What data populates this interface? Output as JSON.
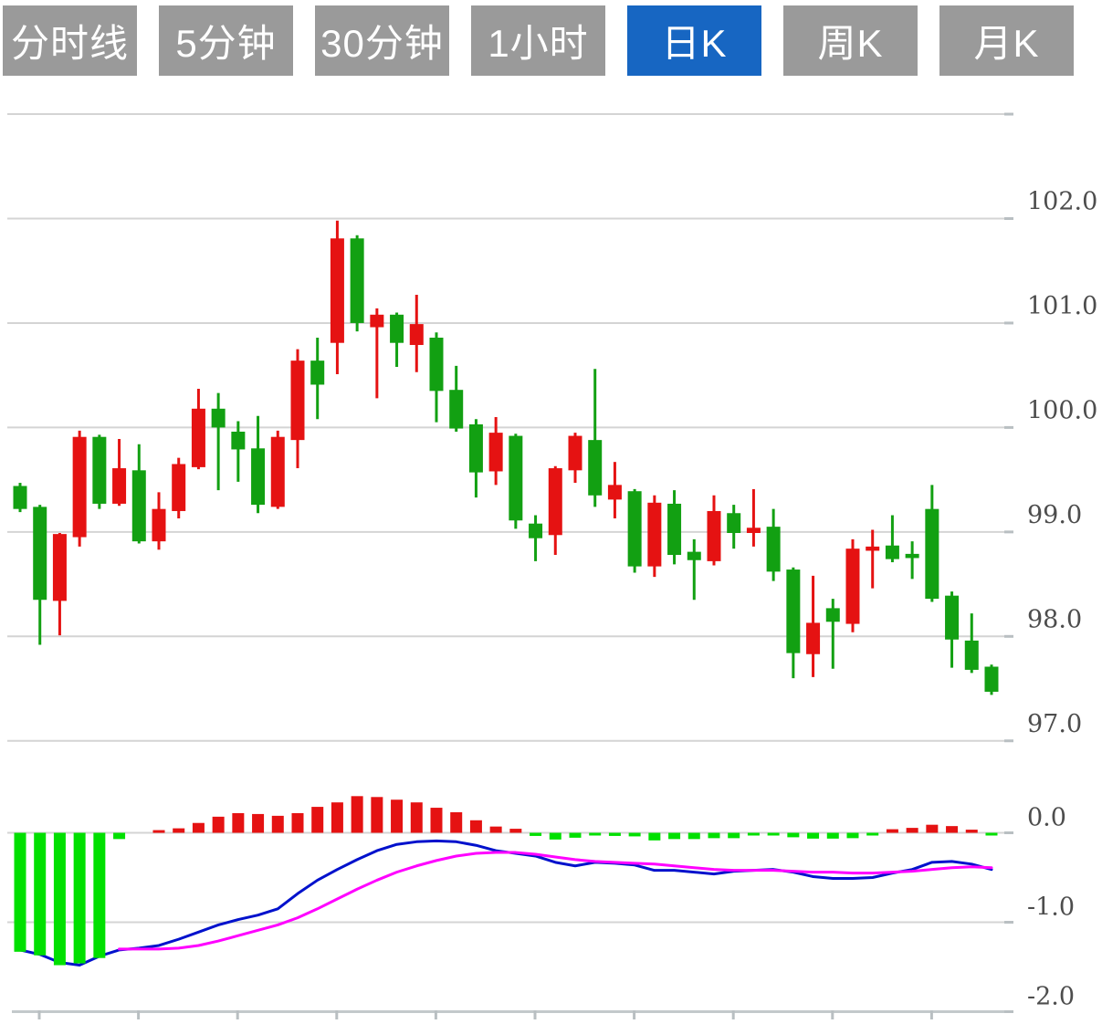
{
  "tabs": [
    {
      "label": "分时线",
      "active": false
    },
    {
      "label": "5分钟",
      "active": false
    },
    {
      "label": "30分钟",
      "active": false
    },
    {
      "label": "1小时",
      "active": false
    },
    {
      "label": "日K",
      "active": true
    },
    {
      "label": "周K",
      "active": false
    },
    {
      "label": "月K",
      "active": false
    }
  ],
  "colors": {
    "candle_up": "#e51212",
    "candle_down": "#12a012",
    "hist_up": "#e51212",
    "hist_down": "#00e000",
    "dif_line": "#0011cc",
    "dea_line": "#ff00ff",
    "grid": "#d4d4d4",
    "axis_line": "#c3c9cb",
    "axis_text": "#4d4d4d",
    "tab_bg": "#9a9a9a",
    "tab_active_bg": "#1766c2",
    "tab_text": "#ffffff"
  },
  "chart_data": {
    "type": "candlestick+macd",
    "title": "",
    "legend": "none",
    "grid": "horizontal gridlines only, labels on right side",
    "price_axis": {
      "tick_values": [
        103,
        102,
        101,
        100,
        99,
        98,
        97
      ],
      "tick_labels": [
        "",
        "102.0",
        "101.0",
        "100.0",
        "99.0",
        "98.0",
        "97.0"
      ],
      "range": [
        97,
        103
      ]
    },
    "macd_axis": {
      "tick_values": [
        0,
        -1,
        -2
      ],
      "tick_labels": [
        "0.0",
        "-1.0",
        "-2.0"
      ],
      "range": [
        -2,
        0.6
      ]
    },
    "candles": [
      {
        "o": 99.44,
        "h": 99.47,
        "l": 99.19,
        "c": 99.22
      },
      {
        "o": 99.24,
        "h": 99.26,
        "l": 97.92,
        "c": 98.35
      },
      {
        "o": 98.34,
        "h": 98.99,
        "l": 98.01,
        "c": 98.98
      },
      {
        "o": 98.95,
        "h": 99.97,
        "l": 98.86,
        "c": 99.91
      },
      {
        "o": 99.91,
        "h": 99.93,
        "l": 99.22,
        "c": 99.27
      },
      {
        "o": 99.27,
        "h": 99.89,
        "l": 99.25,
        "c": 99.61
      },
      {
        "o": 99.59,
        "h": 99.84,
        "l": 98.89,
        "c": 98.91
      },
      {
        "o": 98.91,
        "h": 99.38,
        "l": 98.83,
        "c": 99.22
      },
      {
        "o": 99.2,
        "h": 99.71,
        "l": 99.13,
        "c": 99.65
      },
      {
        "o": 99.62,
        "h": 100.37,
        "l": 99.6,
        "c": 100.18
      },
      {
        "o": 100.18,
        "h": 100.33,
        "l": 99.4,
        "c": 100.0
      },
      {
        "o": 99.96,
        "h": 100.06,
        "l": 99.48,
        "c": 99.79
      },
      {
        "o": 99.8,
        "h": 100.11,
        "l": 99.18,
        "c": 99.26
      },
      {
        "o": 99.24,
        "h": 99.97,
        "l": 99.22,
        "c": 99.91
      },
      {
        "o": 99.88,
        "h": 100.75,
        "l": 99.61,
        "c": 100.64
      },
      {
        "o": 100.64,
        "h": 100.86,
        "l": 100.08,
        "c": 100.41
      },
      {
        "o": 100.81,
        "h": 101.98,
        "l": 100.51,
        "c": 101.81
      },
      {
        "o": 101.81,
        "h": 101.84,
        "l": 100.92,
        "c": 101.0
      },
      {
        "o": 100.96,
        "h": 101.14,
        "l": 100.28,
        "c": 101.08
      },
      {
        "o": 101.08,
        "h": 101.1,
        "l": 100.58,
        "c": 100.81
      },
      {
        "o": 100.79,
        "h": 101.27,
        "l": 100.53,
        "c": 100.99
      },
      {
        "o": 100.86,
        "h": 100.91,
        "l": 100.05,
        "c": 100.35
      },
      {
        "o": 100.36,
        "h": 100.59,
        "l": 99.96,
        "c": 99.99
      },
      {
        "o": 100.03,
        "h": 100.08,
        "l": 99.33,
        "c": 99.57
      },
      {
        "o": 99.58,
        "h": 100.1,
        "l": 99.45,
        "c": 99.95
      },
      {
        "o": 99.92,
        "h": 99.94,
        "l": 99.03,
        "c": 99.11
      },
      {
        "o": 99.08,
        "h": 99.16,
        "l": 98.72,
        "c": 98.94
      },
      {
        "o": 98.97,
        "h": 99.63,
        "l": 98.78,
        "c": 99.61
      },
      {
        "o": 99.59,
        "h": 99.95,
        "l": 99.47,
        "c": 99.92
      },
      {
        "o": 99.88,
        "h": 100.56,
        "l": 99.24,
        "c": 99.35
      },
      {
        "o": 99.31,
        "h": 99.67,
        "l": 99.13,
        "c": 99.45
      },
      {
        "o": 99.39,
        "h": 99.41,
        "l": 98.61,
        "c": 98.67
      },
      {
        "o": 98.67,
        "h": 99.35,
        "l": 98.57,
        "c": 99.28
      },
      {
        "o": 99.27,
        "h": 99.4,
        "l": 98.69,
        "c": 98.78
      },
      {
        "o": 98.81,
        "h": 98.93,
        "l": 98.35,
        "c": 98.73
      },
      {
        "o": 98.72,
        "h": 99.35,
        "l": 98.68,
        "c": 99.2
      },
      {
        "o": 99.18,
        "h": 99.26,
        "l": 98.84,
        "c": 98.99
      },
      {
        "o": 98.99,
        "h": 99.41,
        "l": 98.86,
        "c": 99.04
      },
      {
        "o": 99.05,
        "h": 99.22,
        "l": 98.53,
        "c": 98.62
      },
      {
        "o": 98.64,
        "h": 98.66,
        "l": 97.6,
        "c": 97.84
      },
      {
        "o": 97.83,
        "h": 98.58,
        "l": 97.61,
        "c": 98.13
      },
      {
        "o": 98.27,
        "h": 98.36,
        "l": 97.69,
        "c": 98.14
      },
      {
        "o": 98.12,
        "h": 98.93,
        "l": 98.04,
        "c": 98.84
      },
      {
        "o": 98.82,
        "h": 99.02,
        "l": 98.46,
        "c": 98.86
      },
      {
        "o": 98.87,
        "h": 99.16,
        "l": 98.71,
        "c": 98.74
      },
      {
        "o": 98.79,
        "h": 98.91,
        "l": 98.55,
        "c": 98.75
      },
      {
        "o": 99.22,
        "h": 99.45,
        "l": 98.33,
        "c": 98.36
      },
      {
        "o": 98.39,
        "h": 98.43,
        "l": 97.7,
        "c": 97.97
      },
      {
        "o": 97.96,
        "h": 98.22,
        "l": 97.65,
        "c": 97.68
      },
      {
        "o": 97.71,
        "h": 97.73,
        "l": 97.44,
        "c": 97.47
      }
    ],
    "macd": {
      "histogram": [
        -1.33,
        -1.37,
        -1.48,
        -1.46,
        -1.4,
        -0.07,
        0,
        0.03,
        0.05,
        0.11,
        0.18,
        0.22,
        0.21,
        0.19,
        0.22,
        0.29,
        0.34,
        0.41,
        0.4,
        0.37,
        0.34,
        0.28,
        0.23,
        0.14,
        0.07,
        0.045,
        -0.035,
        -0.075,
        -0.055,
        -0.03,
        -0.035,
        -0.04,
        -0.085,
        -0.07,
        -0.07,
        -0.06,
        -0.06,
        -0.03,
        -0.025,
        -0.05,
        -0.065,
        -0.065,
        -0.06,
        -0.025,
        0.04,
        0.055,
        0.09,
        0.075,
        0.035,
        -0.03
      ],
      "dif": [
        -1.31,
        -1.36,
        -1.45,
        -1.48,
        -1.38,
        -1.31,
        -1.29,
        -1.26,
        -1.19,
        -1.11,
        -1.03,
        -0.97,
        -0.92,
        -0.85,
        -0.68,
        -0.53,
        -0.41,
        -0.3,
        -0.2,
        -0.13,
        -0.1,
        -0.09,
        -0.1,
        -0.14,
        -0.2,
        -0.23,
        -0.26,
        -0.33,
        -0.37,
        -0.33,
        -0.34,
        -0.36,
        -0.42,
        -0.42,
        -0.44,
        -0.46,
        -0.43,
        -0.42,
        -0.41,
        -0.44,
        -0.49,
        -0.51,
        -0.51,
        -0.5,
        -0.45,
        -0.41,
        -0.33,
        -0.32,
        -0.35,
        -0.41
      ],
      "dea": [
        null,
        null,
        null,
        null,
        null,
        -1.3,
        -1.3,
        -1.3,
        -1.29,
        -1.26,
        -1.21,
        -1.15,
        -1.09,
        -1.03,
        -0.95,
        -0.85,
        -0.74,
        -0.63,
        -0.53,
        -0.44,
        -0.37,
        -0.31,
        -0.26,
        -0.23,
        -0.22,
        -0.22,
        -0.24,
        -0.27,
        -0.3,
        -0.32,
        -0.33,
        -0.34,
        -0.35,
        -0.37,
        -0.39,
        -0.41,
        -0.42,
        -0.42,
        -0.42,
        -0.43,
        -0.44,
        -0.44,
        -0.45,
        -0.45,
        -0.44,
        -0.43,
        -0.41,
        -0.39,
        -0.38,
        -0.39
      ]
    }
  }
}
